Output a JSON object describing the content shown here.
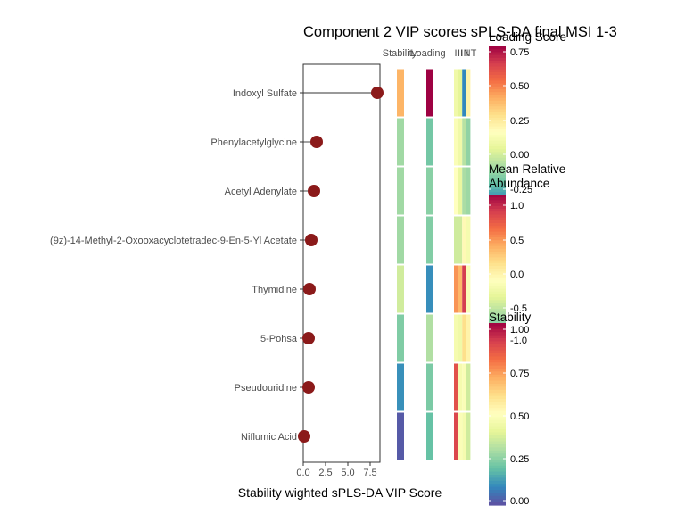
{
  "chart_data": {
    "type": "lollipop-heatmap",
    "title": "Component 2 VIP scores sPLS-DA final MSI 1-3",
    "xlabel": "Stability wighted sPLS-DA VIP Score",
    "ylabel": "",
    "xlim": [
      0,
      8.6
    ],
    "x_ticks": [
      "0.0",
      "2.5",
      "5.0",
      "7.5"
    ],
    "x_tick_values": [
      0,
      2.5,
      5.0,
      7.5
    ],
    "categories": [
      "Indoxyl Sulfate",
      "Phenylacetylglycine",
      "Acetyl Adenylate",
      "(9z)-14-Methyl-2-Oxooxacyclotetradec-9-En-5-Yl Acetate",
      "Thymidine",
      "5-Pohsa",
      "Pseudouridine",
      "Niflumic Acid"
    ],
    "values": [
      8.3,
      1.5,
      1.2,
      0.9,
      0.7,
      0.6,
      0.6,
      0.1
    ],
    "point_color": "#8b1a1a",
    "heatmap_columns": [
      "Stability",
      "Loading",
      "I",
      "II",
      "III",
      "NT"
    ],
    "stability": [
      0.72,
      0.3,
      0.3,
      0.3,
      0.38,
      0.25,
      0.12,
      0.02
    ],
    "loading": [
      0.75,
      -0.03,
      0.0,
      -0.01,
      -0.14,
      0.06,
      -0.02,
      -0.05
    ],
    "mean_relative_abundance": [
      [
        -0.15,
        -0.25,
        -1.0,
        0.1
      ],
      [
        -0.05,
        -0.15,
        -0.45,
        -0.6
      ],
      [
        0.0,
        -0.2,
        -0.5,
        -0.55
      ],
      [
        -0.35,
        -0.35,
        0.05,
        -0.1
      ],
      [
        0.6,
        0.45,
        1.0,
        -0.05
      ],
      [
        -0.1,
        -0.15,
        0.25,
        0.1
      ],
      [
        0.9,
        -0.1,
        -0.05,
        -0.35
      ],
      [
        0.95,
        -0.05,
        -0.1,
        -0.35
      ]
    ],
    "legends": [
      {
        "title": "Loading Score",
        "min": -0.25,
        "max": 0.75,
        "ticks": [
          "0.75",
          "0.50",
          "0.25",
          "0.00",
          "-0.25"
        ]
      },
      {
        "title": "Mean Relative Abundance",
        "min": -1.25,
        "max": 1.25,
        "ticks": [
          "1.0",
          "0.5",
          "0.0",
          "-0.5",
          "-1.0"
        ]
      },
      {
        "title": "Stability",
        "min": 0,
        "max": 1.05,
        "ticks": [
          "1.00",
          "0.75",
          "0.50",
          "0.25",
          "0.00"
        ]
      }
    ],
    "palette": [
      "#5e4fa2",
      "#3288bd",
      "#66c2a5",
      "#abdda4",
      "#e6f598",
      "#ffffbf",
      "#fee08b",
      "#fdae61",
      "#f46d43",
      "#d53e4f",
      "#9e0142"
    ],
    "grid": false
  }
}
